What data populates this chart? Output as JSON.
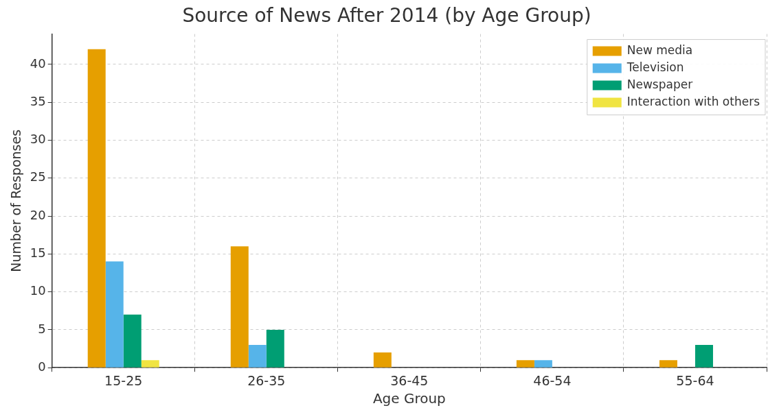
{
  "chart_data": {
    "type": "bar",
    "title": "Source of News After 2014 (by Age Group)",
    "xlabel": "Age Group",
    "ylabel": "Number of Responses",
    "categories": [
      "15-25",
      "26-35",
      "36-45",
      "46-54",
      "55-64"
    ],
    "series": [
      {
        "name": "New media",
        "color": "#e69f00",
        "values": [
          42,
          16,
          2,
          1,
          1
        ]
      },
      {
        "name": "Television",
        "color": "#56b4e9",
        "values": [
          14,
          3,
          0,
          1,
          0
        ]
      },
      {
        "name": "Newspaper",
        "color": "#009e73",
        "values": [
          7,
          5,
          0,
          0,
          3
        ]
      },
      {
        "name": "Interaction with others",
        "color": "#f0e442",
        "values": [
          1,
          0,
          0,
          0,
          0
        ]
      }
    ],
    "ylim": [
      0,
      44
    ],
    "yticks": [
      0,
      5,
      10,
      15,
      20,
      25,
      30,
      35,
      40
    ],
    "grid": true,
    "legend": "top right"
  }
}
